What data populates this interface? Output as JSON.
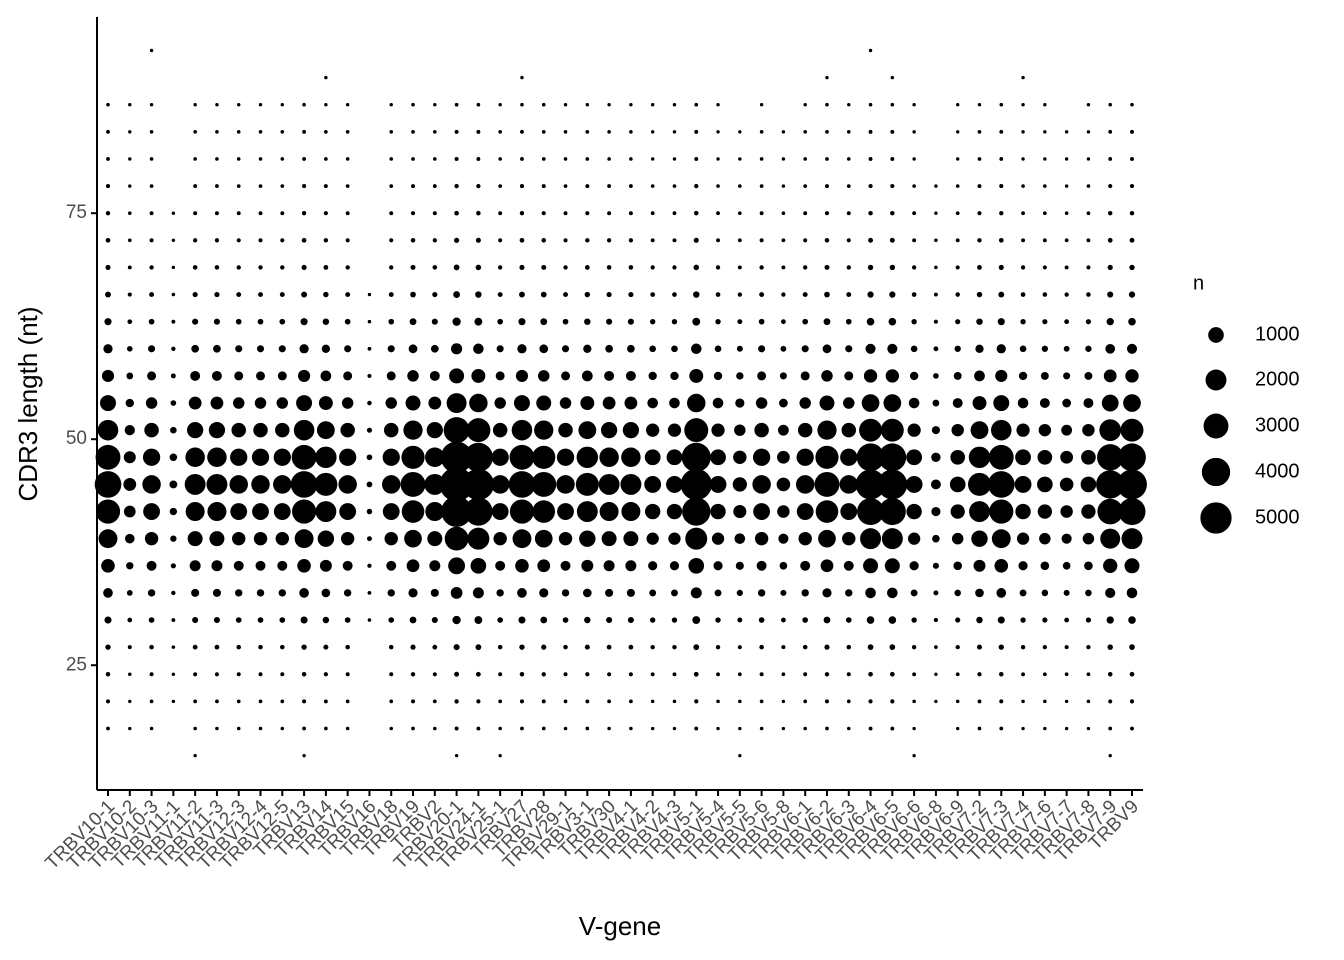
{
  "chart_data": {
    "type": "bubble",
    "xlabel": "V-gene",
    "ylabel": "CDR3 length (nt)",
    "categories": [
      "TRBV10-1",
      "TRBV10-2",
      "TRBV10-3",
      "TRBV11-1",
      "TRBV11-2",
      "TRBV11-3",
      "TRBV12-3",
      "TRBV12-4",
      "TRBV12-5",
      "TRBV13",
      "TRBV14",
      "TRBV15",
      "TRBV16",
      "TRBV18",
      "TRBV19",
      "TRBV2",
      "TRBV20-1",
      "TRBV24-1",
      "TRBV25-1",
      "TRBV27",
      "TRBV28",
      "TRBV29-1",
      "TRBV3-1",
      "TRBV30",
      "TRBV4-1",
      "TRBV4-2",
      "TRBV4-3",
      "TRBV5-1",
      "TRBV5-4",
      "TRBV5-5",
      "TRBV5-6",
      "TRBV5-8",
      "TRBV6-1",
      "TRBV6-2",
      "TRBV6-3",
      "TRBV6-4",
      "TRBV6-5",
      "TRBV6-6",
      "TRBV6-8",
      "TRBV6-9",
      "TRBV7-2",
      "TRBV7-3",
      "TRBV7-4",
      "TRBV7-6",
      "TRBV7-7",
      "TRBV7-8",
      "TRBV7-9",
      "TRBV9"
    ],
    "y": [
      15,
      18,
      21,
      24,
      27,
      30,
      33,
      36,
      39,
      42,
      45,
      48,
      51,
      54,
      57,
      60,
      63,
      66,
      69,
      72,
      75,
      78,
      81,
      84,
      87,
      90,
      93
    ],
    "values": [
      [
        null,
        4,
        7,
        14,
        35,
        105,
        280,
        700,
        1575,
        2800,
        3500,
        2975,
        1925,
        1050,
        525,
        245,
        105,
        53,
        28,
        18,
        11,
        7,
        4,
        4,
        2,
        null,
        null
      ],
      [
        null,
        1,
        1,
        2,
        6,
        18,
        48,
        120,
        270,
        480,
        600,
        510,
        330,
        180,
        90,
        42,
        18,
        9,
        5,
        3,
        2,
        1,
        1,
        1,
        1,
        null,
        null
      ],
      [
        null,
        2,
        3,
        6,
        15,
        45,
        120,
        300,
        675,
        1200,
        1500,
        1275,
        825,
        450,
        225,
        105,
        45,
        23,
        12,
        8,
        5,
        3,
        2,
        2,
        1,
        null,
        1
      ],
      [
        null,
        null,
        1,
        1,
        2,
        5,
        12,
        30,
        68,
        120,
        150,
        128,
        83,
        45,
        23,
        11,
        5,
        2,
        1,
        1,
        1,
        null,
        null,
        null,
        null,
        null,
        null
      ],
      [
        1,
        2,
        4,
        8,
        20,
        60,
        160,
        400,
        900,
        1600,
        2000,
        1700,
        1100,
        600,
        300,
        140,
        60,
        30,
        16,
        10,
        6,
        4,
        2,
        2,
        1,
        null,
        null
      ],
      [
        null,
        2,
        4,
        8,
        20,
        60,
        160,
        400,
        900,
        1600,
        2000,
        1700,
        1100,
        600,
        300,
        140,
        60,
        30,
        16,
        10,
        6,
        4,
        2,
        2,
        1,
        null,
        null
      ],
      [
        null,
        2,
        3,
        6,
        15,
        45,
        120,
        300,
        675,
        1200,
        1500,
        1275,
        825,
        450,
        225,
        105,
        45,
        23,
        12,
        8,
        5,
        3,
        2,
        2,
        1,
        null,
        null
      ],
      [
        null,
        2,
        3,
        6,
        15,
        45,
        120,
        300,
        675,
        1200,
        1500,
        1275,
        825,
        450,
        225,
        105,
        45,
        23,
        12,
        8,
        5,
        3,
        2,
        2,
        1,
        null,
        null
      ],
      [
        null,
        2,
        3,
        6,
        15,
        45,
        120,
        300,
        675,
        1200,
        1500,
        1275,
        825,
        450,
        225,
        105,
        45,
        23,
        12,
        8,
        5,
        3,
        2,
        2,
        1,
        null,
        null
      ],
      [
        1,
        4,
        7,
        14,
        35,
        105,
        280,
        700,
        1575,
        2800,
        3500,
        2975,
        1925,
        1050,
        525,
        245,
        105,
        53,
        28,
        18,
        11,
        7,
        4,
        4,
        2,
        null,
        null
      ],
      [
        null,
        3,
        5,
        10,
        25,
        75,
        200,
        500,
        1125,
        2000,
        2500,
        2125,
        1375,
        750,
        375,
        175,
        75,
        38,
        20,
        13,
        8,
        5,
        3,
        3,
        1,
        1,
        null
      ],
      [
        null,
        2,
        3,
        6,
        15,
        45,
        120,
        300,
        675,
        1200,
        1500,
        1275,
        825,
        450,
        225,
        105,
        45,
        23,
        12,
        8,
        5,
        3,
        2,
        2,
        1,
        null,
        null
      ],
      [
        null,
        null,
        null,
        null,
        null,
        2,
        4,
        10,
        23,
        40,
        50,
        43,
        28,
        15,
        8,
        4,
        2,
        1,
        null,
        null,
        null,
        null,
        null,
        null,
        null,
        null,
        null
      ],
      [
        null,
        2,
        3,
        6,
        15,
        45,
        120,
        300,
        675,
        1200,
        1500,
        1275,
        825,
        450,
        225,
        105,
        45,
        23,
        12,
        8,
        5,
        3,
        2,
        2,
        1,
        null,
        null
      ],
      [
        null,
        3,
        6,
        12,
        30,
        90,
        240,
        600,
        1350,
        2400,
        3000,
        2550,
        1650,
        900,
        450,
        210,
        90,
        45,
        24,
        15,
        9,
        6,
        3,
        3,
        2,
        null,
        null
      ],
      [
        null,
        2,
        4,
        8,
        20,
        60,
        160,
        400,
        900,
        1600,
        2000,
        1700,
        1100,
        600,
        300,
        140,
        60,
        30,
        16,
        10,
        6,
        4,
        2,
        2,
        1,
        null,
        null
      ],
      [
        1,
        6,
        12,
        24,
        60,
        180,
        480,
        1200,
        2700,
        4800,
        6000,
        5100,
        3300,
        1800,
        900,
        420,
        180,
        90,
        48,
        30,
        18,
        12,
        6,
        6,
        3,
        null,
        null
      ],
      [
        null,
        5,
        10,
        20,
        50,
        150,
        400,
        1000,
        2250,
        4000,
        5000,
        4250,
        2750,
        1500,
        750,
        350,
        150,
        75,
        40,
        25,
        15,
        10,
        5,
        5,
        3,
        null,
        null
      ],
      [
        1,
        2,
        3,
        6,
        15,
        45,
        120,
        300,
        675,
        1200,
        1500,
        1275,
        825,
        450,
        225,
        105,
        45,
        23,
        12,
        8,
        5,
        3,
        2,
        2,
        1,
        null,
        null
      ],
      [
        null,
        4,
        7,
        14,
        35,
        105,
        280,
        700,
        1575,
        2800,
        3500,
        2975,
        1925,
        1050,
        525,
        245,
        105,
        53,
        28,
        18,
        11,
        7,
        4,
        4,
        2,
        1,
        null
      ],
      [
        null,
        3,
        6,
        12,
        30,
        90,
        240,
        600,
        1350,
        2400,
        3000,
        2550,
        1650,
        900,
        450,
        210,
        90,
        45,
        24,
        15,
        9,
        6,
        3,
        3,
        2,
        null,
        null
      ],
      [
        null,
        2,
        3,
        6,
        15,
        45,
        120,
        300,
        675,
        1200,
        1500,
        1275,
        825,
        450,
        225,
        105,
        45,
        23,
        12,
        8,
        5,
        3,
        2,
        2,
        1,
        null,
        null
      ],
      [
        null,
        3,
        5,
        10,
        25,
        75,
        200,
        500,
        1125,
        2000,
        2500,
        2125,
        1375,
        750,
        375,
        175,
        75,
        38,
        20,
        13,
        8,
        5,
        3,
        3,
        1,
        null,
        null
      ],
      [
        null,
        2,
        4,
        8,
        20,
        60,
        160,
        400,
        900,
        1600,
        2000,
        1700,
        1100,
        600,
        300,
        140,
        60,
        30,
        16,
        10,
        6,
        4,
        2,
        2,
        1,
        null,
        null
      ],
      [
        null,
        2,
        4,
        8,
        20,
        60,
        160,
        400,
        900,
        1600,
        2000,
        1700,
        1100,
        600,
        300,
        140,
        60,
        30,
        16,
        10,
        6,
        4,
        2,
        2,
        1,
        null,
        null
      ],
      [
        null,
        1,
        2,
        5,
        12,
        36,
        96,
        240,
        540,
        960,
        1200,
        1020,
        660,
        360,
        180,
        84,
        36,
        18,
        10,
        6,
        4,
        2,
        1,
        1,
        1,
        null,
        null
      ],
      [
        null,
        1,
        2,
        5,
        12,
        36,
        96,
        240,
        540,
        960,
        1200,
        1020,
        660,
        360,
        180,
        84,
        36,
        18,
        10,
        6,
        4,
        2,
        1,
        1,
        1,
        null,
        null
      ],
      [
        null,
        5,
        10,
        20,
        50,
        150,
        400,
        1000,
        2250,
        4000,
        5000,
        4250,
        2750,
        1500,
        750,
        350,
        150,
        75,
        40,
        25,
        15,
        10,
        5,
        5,
        3,
        null,
        null
      ],
      [
        null,
        1,
        2,
        5,
        12,
        36,
        96,
        240,
        540,
        960,
        1200,
        1020,
        660,
        360,
        180,
        84,
        36,
        18,
        10,
        6,
        4,
        2,
        1,
        1,
        1,
        null,
        null
      ],
      [
        1,
        1,
        2,
        3,
        8,
        24,
        64,
        160,
        360,
        640,
        800,
        680,
        440,
        240,
        120,
        56,
        24,
        12,
        6,
        4,
        2,
        2,
        1,
        1,
        null,
        null,
        null
      ],
      [
        null,
        2,
        3,
        6,
        15,
        45,
        120,
        300,
        675,
        1200,
        1500,
        1275,
        825,
        450,
        225,
        105,
        45,
        23,
        12,
        8,
        5,
        3,
        2,
        2,
        1,
        null,
        null
      ],
      [
        null,
        1,
        1,
        3,
        7,
        21,
        56,
        140,
        315,
        560,
        700,
        595,
        385,
        210,
        105,
        49,
        21,
        11,
        6,
        4,
        2,
        1,
        1,
        1,
        null,
        null,
        null
      ],
      [
        null,
        2,
        3,
        6,
        15,
        45,
        120,
        300,
        675,
        1200,
        1500,
        1275,
        825,
        450,
        225,
        105,
        45,
        23,
        12,
        8,
        5,
        3,
        2,
        2,
        1,
        null,
        null
      ],
      [
        null,
        3,
        6,
        12,
        30,
        90,
        240,
        600,
        1350,
        2400,
        3000,
        2550,
        1650,
        900,
        450,
        210,
        90,
        45,
        24,
        15,
        9,
        6,
        3,
        3,
        2,
        1,
        null
      ],
      [
        null,
        2,
        3,
        6,
        15,
        45,
        120,
        300,
        675,
        1200,
        1500,
        1275,
        825,
        450,
        225,
        105,
        45,
        23,
        12,
        8,
        5,
        3,
        2,
        2,
        1,
        null,
        null
      ],
      [
        null,
        5,
        9,
        18,
        45,
        135,
        360,
        900,
        2025,
        3600,
        4500,
        3825,
        2475,
        1350,
        675,
        315,
        135,
        68,
        36,
        23,
        14,
        9,
        5,
        5,
        2,
        null,
        1
      ],
      [
        null,
        5,
        9,
        18,
        45,
        135,
        360,
        900,
        2025,
        3600,
        4500,
        3825,
        2475,
        1350,
        675,
        315,
        135,
        68,
        36,
        23,
        14,
        9,
        5,
        5,
        2,
        1,
        null
      ],
      [
        1,
        1,
        2,
        5,
        12,
        36,
        96,
        240,
        540,
        960,
        1200,
        1020,
        660,
        360,
        180,
        84,
        36,
        18,
        10,
        6,
        4,
        2,
        1,
        1,
        1,
        null,
        null
      ],
      [
        null,
        null,
        1,
        1,
        3,
        9,
        24,
        60,
        135,
        240,
        300,
        255,
        165,
        90,
        45,
        21,
        9,
        5,
        2,
        2,
        1,
        1,
        null,
        null,
        null,
        null,
        null
      ],
      [
        null,
        1,
        2,
        4,
        10,
        30,
        80,
        200,
        450,
        800,
        1000,
        850,
        550,
        300,
        150,
        70,
        30,
        15,
        8,
        5,
        3,
        2,
        1,
        1,
        1,
        null,
        null
      ],
      [
        null,
        3,
        5,
        10,
        25,
        75,
        200,
        500,
        1125,
        2000,
        2500,
        2125,
        1375,
        750,
        375,
        175,
        75,
        38,
        20,
        13,
        8,
        5,
        3,
        3,
        1,
        null,
        null
      ],
      [
        null,
        4,
        7,
        14,
        35,
        105,
        280,
        700,
        1575,
        2800,
        3500,
        2975,
        1925,
        1050,
        525,
        245,
        105,
        53,
        28,
        18,
        11,
        7,
        4,
        4,
        2,
        null,
        null
      ],
      [
        null,
        1,
        2,
        5,
        12,
        36,
        96,
        240,
        540,
        960,
        1200,
        1020,
        660,
        360,
        180,
        84,
        36,
        18,
        10,
        6,
        4,
        2,
        1,
        1,
        1,
        1,
        null
      ],
      [
        null,
        1,
        2,
        4,
        10,
        30,
        80,
        200,
        450,
        800,
        1000,
        850,
        550,
        300,
        150,
        70,
        30,
        15,
        8,
        5,
        3,
        2,
        1,
        1,
        1,
        null,
        null
      ],
      [
        null,
        1,
        1,
        3,
        7,
        21,
        56,
        140,
        315,
        560,
        700,
        595,
        385,
        210,
        105,
        49,
        21,
        11,
        6,
        4,
        2,
        1,
        1,
        1,
        null,
        null,
        null
      ],
      [
        null,
        1,
        2,
        4,
        10,
        30,
        80,
        200,
        450,
        800,
        1000,
        850,
        550,
        300,
        150,
        70,
        30,
        15,
        8,
        5,
        3,
        2,
        1,
        1,
        1,
        null,
        null
      ],
      [
        1,
        4,
        8,
        16,
        40,
        120,
        320,
        800,
        1800,
        3200,
        4000,
        3400,
        2200,
        1200,
        600,
        280,
        120,
        60,
        32,
        20,
        12,
        8,
        4,
        4,
        2,
        null,
        null
      ],
      [
        null,
        5,
        9,
        18,
        45,
        135,
        360,
        900,
        2025,
        3600,
        4500,
        3825,
        2475,
        1350,
        675,
        315,
        135,
        68,
        36,
        23,
        14,
        9,
        5,
        5,
        2,
        null,
        null
      ]
    ],
    "color": "#000000",
    "ylim": [
      11.2,
      96.7
    ],
    "yticks": [
      25,
      50,
      75
    ],
    "size_legend": {
      "title": "n",
      "values": [
        1000,
        2000,
        3000,
        4000,
        5000
      ]
    }
  }
}
